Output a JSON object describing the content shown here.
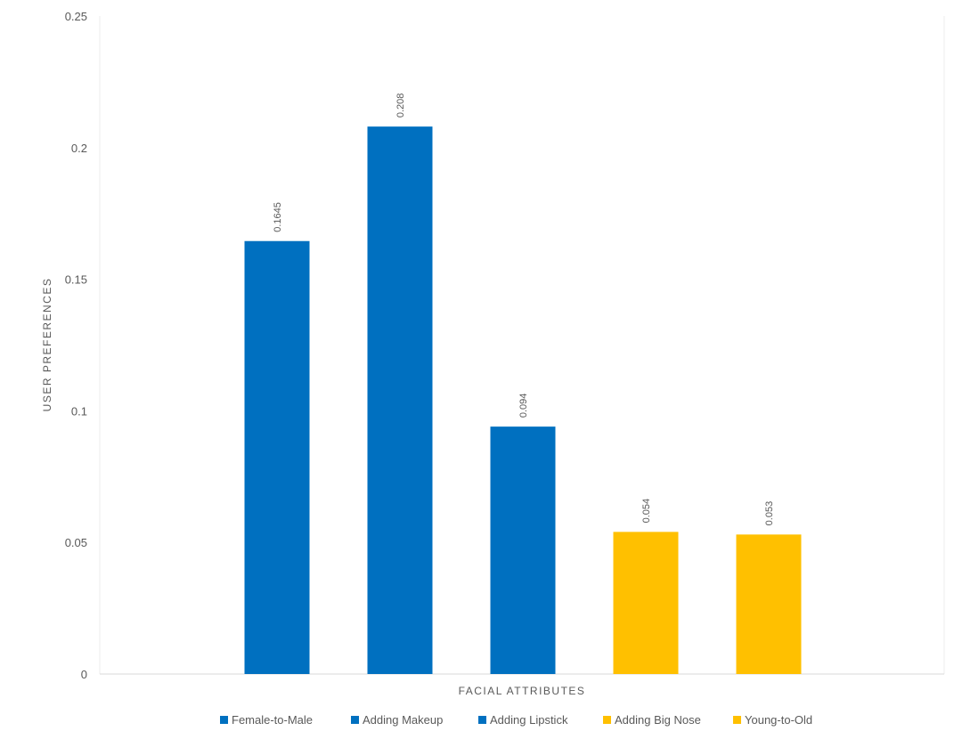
{
  "chart_data": {
    "type": "bar",
    "categories": [
      "Female-to-Male",
      "Adding Makeup",
      "Adding Lipstick",
      "Adding Big Nose",
      "Young-to-Old"
    ],
    "series": [
      {
        "name": "Female-to-Male",
        "values": [
          0.1645,
          null,
          null,
          null,
          null
        ],
        "color": "#0070C0"
      },
      {
        "name": "Adding Makeup",
        "values": [
          null,
          0.208,
          null,
          null,
          null
        ],
        "color": "#0070C0"
      },
      {
        "name": "Adding Lipstick",
        "values": [
          null,
          null,
          0.094,
          null,
          null
        ],
        "color": "#0070C0"
      },
      {
        "name": "Adding Big Nose",
        "values": [
          null,
          null,
          null,
          0.054,
          null
        ],
        "color": "#FFC000"
      },
      {
        "name": "Young-to-Old",
        "values": [
          null,
          null,
          null,
          null,
          0.053
        ],
        "color": "#FFC000"
      }
    ],
    "values": [
      0.1645,
      0.208,
      0.094,
      0.054,
      0.053
    ],
    "data_labels": [
      "0.1645",
      "0.208",
      "0.094",
      "0.054",
      "0.053"
    ],
    "colors": [
      "#0070C0",
      "#0070C0",
      "#0070C0",
      "#FFC000",
      "#FFC000"
    ],
    "title": "",
    "xlabel": "FACIAL ATTRIBUTES",
    "ylabel": "USER PREFERENCES",
    "ylim": [
      0,
      0.25
    ],
    "yticks": [
      0,
      0.05,
      0.1,
      0.15,
      0.2,
      0.25
    ],
    "ytick_labels": [
      "0",
      "0.05",
      "0.1",
      "0.15",
      "0.2",
      "0.25"
    ],
    "grid": false,
    "legend_position": "bottom"
  },
  "colors": {
    "axis_line": "#d9d9d9",
    "text": "#595959"
  }
}
